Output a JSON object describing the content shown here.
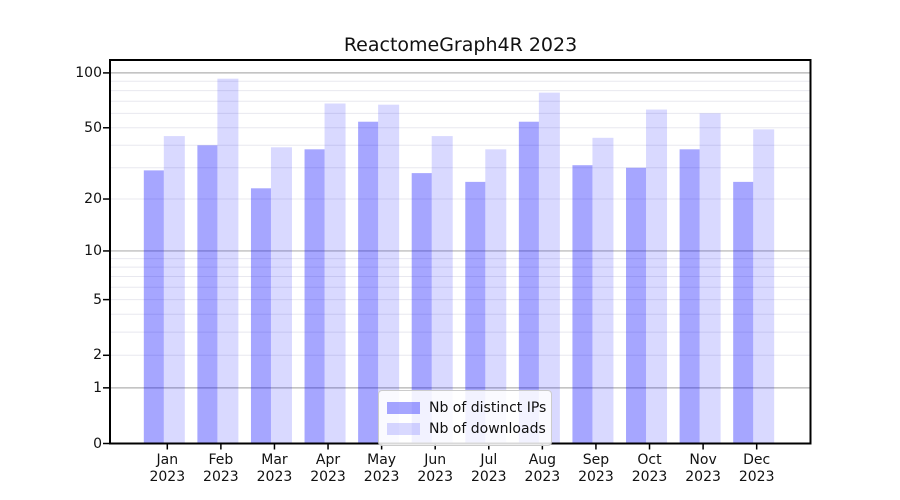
{
  "title": "ReactomeGraph4R 2023",
  "chart_data": {
    "type": "bar",
    "title": "ReactomeGraph4R 2023",
    "categories": [
      "Jan 2023",
      "Feb 2023",
      "Mar 2023",
      "Apr 2023",
      "May 2023",
      "Jun 2023",
      "Jul 2023",
      "Aug 2023",
      "Sep 2023",
      "Oct 2023",
      "Nov 2023",
      "Dec 2023"
    ],
    "series": [
      {
        "name": "Nb of distinct IPs",
        "color": "rgba(0,0,255,0.35)",
        "color_hex": "#a6a6ff",
        "values": [
          29,
          40,
          23,
          38,
          54,
          28,
          25,
          54,
          31,
          30,
          38,
          25
        ]
      },
      {
        "name": "Nb of downloads",
        "color": "rgba(0,0,255,0.15)",
        "color_hex": "#d9d9ff",
        "values": [
          45,
          93,
          39,
          68,
          67,
          45,
          38,
          78,
          44,
          63,
          60,
          49
        ]
      }
    ],
    "xlabel": "",
    "ylabel": "",
    "y_axis": {
      "scale": "log1p",
      "tick_values": [
        100,
        50,
        20,
        10,
        5,
        2,
        1,
        0
      ],
      "major_grid_values": [
        1,
        10,
        100
      ],
      "minor_grid_values": [
        2,
        3,
        4,
        5,
        6,
        7,
        8,
        9,
        20,
        30,
        40,
        50,
        60,
        70,
        80,
        90
      ],
      "range": [
        0,
        100
      ]
    },
    "grid": true,
    "legend_position": "bottom-center"
  },
  "colors": {
    "major_grid": "#b0b0b0",
    "minor_grid": "#e8e8ef",
    "axis_frame": "#000000",
    "text": "#111111",
    "legend_border": "#cccccc"
  }
}
